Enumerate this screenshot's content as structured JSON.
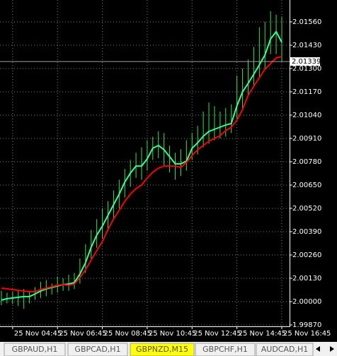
{
  "chart_data": {
    "type": "price-bars",
    "color": "#2ee84a",
    "categories": [
      null,
      null,
      "25 Nov 04:45",
      null,
      null,
      null,
      null,
      null,
      null,
      null,
      "25 Nov 06:45",
      null,
      null,
      null,
      null,
      null,
      null,
      null,
      "25 Nov 08:45",
      null,
      null,
      null,
      null,
      null,
      null,
      null,
      "25 Nov 10:45",
      null,
      null,
      null,
      null,
      null,
      null,
      null,
      "25 Nov 12:45",
      null,
      null,
      null,
      null,
      null,
      null,
      null,
      "25 Nov 14:45",
      null,
      null,
      null,
      null,
      null,
      null,
      null,
      "25 Nov 16:45"
    ],
    "high": [
      2.0006,
      2.0005,
      2.00055,
      2.00065,
      2.0007,
      2.0006,
      2.0008,
      2.0011,
      2.0012,
      2.001,
      2.0014,
      2.0013,
      2.0015,
      2.0016,
      2.0024,
      2.0032,
      2.004,
      2.0046,
      2.0052,
      2.0056,
      2.0062,
      2.0068,
      2.0074,
      2.0079,
      2.0083,
      2.0086,
      2.009,
      2.0092,
      2.0095,
      2.0094,
      2.0087,
      2.0083,
      2.0085,
      2.009,
      2.0094,
      2.0098,
      2.0106,
      2.0111,
      2.0109,
      2.0106,
      2.0108,
      2.011,
      2.0126,
      2.013,
      2.0135,
      2.0142,
      2.0153,
      2.0156,
      2.0162,
      2.016,
      2.0159
    ],
    "low": [
      1.9998,
      1.9999,
      1.99985,
      1.99975,
      1.9996,
      1.9999,
      2.0001,
      2.0002,
      2.0003,
      2.0004,
      2.0005,
      2.0006,
      2.0006,
      2.0007,
      2.001,
      2.0016,
      2.0024,
      2.003,
      2.0035,
      2.004,
      2.0046,
      2.0052,
      2.0058,
      2.0064,
      2.0069,
      2.0068,
      2.0073,
      2.0079,
      2.008,
      2.0076,
      2.0072,
      2.0068,
      2.007,
      2.0073,
      2.0079,
      2.0082,
      2.0086,
      2.0088,
      2.009,
      2.0091,
      2.0092,
      2.0094,
      2.0101,
      2.0108,
      2.0115,
      2.012,
      2.0125,
      2.013,
      2.0138,
      2.0138,
      2.0134
    ],
    "series": [
      {
        "color": "#33ff99",
        "values": [
          2.00008,
          2.00016,
          2.0002,
          2.00024,
          2.00028,
          2.00028,
          2.00043,
          2.00059,
          2.00071,
          2.00079,
          2.00087,
          2.00095,
          2.00098,
          2.00106,
          2.00154,
          2.00217,
          2.00303,
          2.0037,
          2.00421,
          2.00481,
          2.0054,
          2.00599,
          2.00666,
          2.00717,
          2.00756,
          2.00756,
          2.00796,
          2.00855,
          2.00871,
          2.00847,
          2.00808,
          2.00768,
          2.00768,
          2.00784,
          2.00855,
          2.00886,
          2.00922,
          2.00949,
          2.00961,
          2.00973,
          2.00985,
          2.00993,
          2.01091,
          2.0117,
          2.01217,
          2.01268,
          2.0132,
          2.01375,
          2.01465,
          2.01505,
          2.01446
        ]
      },
      {
        "color": "#ff0000",
        "values": [
          2.00075,
          2.00071,
          2.00067,
          2.00063,
          2.00059,
          2.00055,
          2.00055,
          2.00067,
          2.00075,
          2.00083,
          2.00091,
          2.00095,
          2.00091,
          2.00098,
          2.00134,
          2.00177,
          2.00232,
          2.00284,
          2.00335,
          2.00402,
          2.00461,
          2.00508,
          2.00559,
          2.00599,
          2.0063,
          2.0065,
          2.00689,
          2.00721,
          2.00744,
          2.00756,
          2.00756,
          2.00756,
          2.00748,
          2.00776,
          2.00815,
          2.00847,
          2.00871,
          2.00894,
          2.0091,
          2.00926,
          2.00953,
          2.00973,
          2.01012,
          2.01071,
          2.0115,
          2.01201,
          2.01249,
          2.01296,
          2.01327,
          2.01359,
          2.01367
        ]
      }
    ],
    "ylim": [
      1.99862,
      2.01682
    ],
    "yticks": [
      {
        "value": 2.0156,
        "label": "2.01560"
      },
      {
        "value": 2.0143,
        "label": "2.01430"
      },
      {
        "value": 2.013,
        "label": "2.01300"
      },
      {
        "value": 2.0117,
        "label": "2.01170"
      },
      {
        "value": 2.0104,
        "label": "2.01040"
      },
      {
        "value": 2.0091,
        "label": "2.00910"
      },
      {
        "value": 2.0078,
        "label": "2.00780"
      },
      {
        "value": 2.0065,
        "label": "2.00650"
      },
      {
        "value": 2.0052,
        "label": "2.00520"
      },
      {
        "value": 2.0039,
        "label": "2.00390"
      },
      {
        "value": 2.0026,
        "label": "2.00260"
      },
      {
        "value": 2.0013,
        "label": "2.00130"
      },
      {
        "value": 2.0,
        "label": "2.00000"
      },
      {
        "value": 1.9987,
        "label": "1.99870"
      }
    ],
    "current_price": 2.01339,
    "grid": true
  },
  "tabs": {
    "items": [
      "GBPAUD,H1",
      "GBPCAD,H1",
      "GBPNZD,M15",
      "GBPCHF,H1",
      "AUDCAD,H1"
    ],
    "active": 2
  }
}
